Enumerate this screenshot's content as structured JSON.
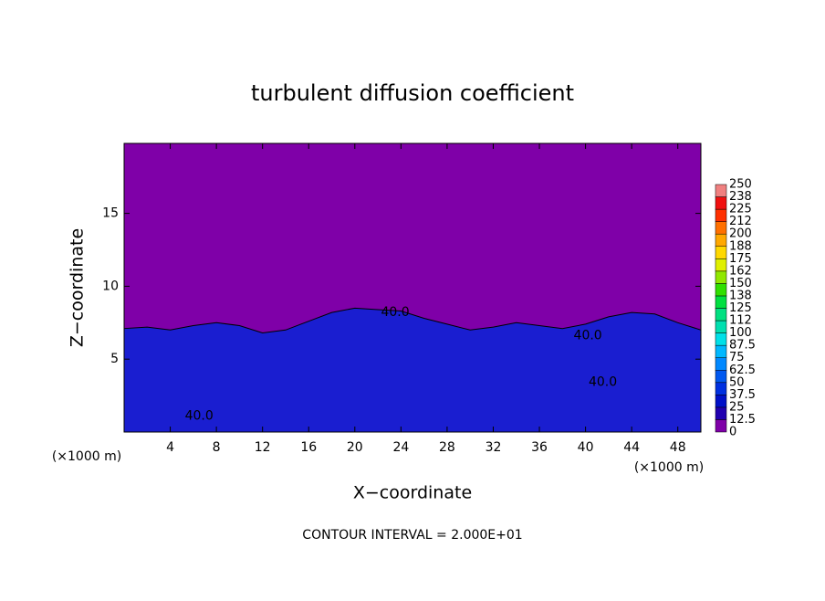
{
  "chart_data": {
    "type": "contour",
    "title": "turbulent diffusion coefficient",
    "xlabel": "X−coordinate",
    "ylabel": "Z−coordinate",
    "xunit": "(×1000 m)",
    "yunit": "(×1000 m)",
    "footer": "CONTOUR INTERVAL = 2.000E+01",
    "xlim": [
      0,
      50
    ],
    "ylim": [
      0,
      19.8
    ],
    "xticks": [
      4,
      8,
      12,
      16,
      20,
      24,
      28,
      32,
      36,
      40,
      44,
      48
    ],
    "yticks": [
      5,
      10,
      15
    ],
    "background": "#7f00a8",
    "x": [
      0,
      2,
      4,
      6,
      8,
      10,
      12,
      14,
      16,
      18,
      20,
      22,
      24,
      26,
      28,
      30,
      32,
      34,
      36,
      38,
      40,
      42,
      44,
      46,
      48,
      50
    ],
    "values": [
      7.1,
      7.2,
      7.0,
      7.3,
      7.5,
      7.3,
      6.8,
      7.0,
      7.6,
      8.2,
      8.5,
      8.4,
      8.3,
      7.8,
      7.4,
      7.0,
      7.2,
      7.5,
      7.3,
      7.1,
      7.4,
      7.9,
      8.2,
      8.1,
      7.5,
      7.0
    ],
    "color": "#1a1ed0",
    "annotations": [
      {
        "text": "40.0",
        "x": 23.5,
        "y": 8.2
      },
      {
        "text": "40.0",
        "x": 40.2,
        "y": 6.6
      },
      {
        "text": "40.0",
        "x": 41.5,
        "y": 3.4
      },
      {
        "text": "40.0",
        "x": 6.5,
        "y": 1.1
      }
    ],
    "colorbar_ticks": [
      0,
      12.5,
      25,
      37.5,
      50,
      62.5,
      75,
      87.5,
      100,
      {
        "value": 112.5,
        "label": "112"
      },
      125,
      {
        "value": 137.5,
        "label": "138"
      },
      150,
      {
        "value": 162.5,
        "label": "162"
      },
      175,
      {
        "value": 187.5,
        "label": "188"
      },
      200,
      {
        "value": 212.5,
        "label": "212"
      },
      225,
      {
        "value": 237.5,
        "label": "238"
      },
      250
    ],
    "colorbar_colors": [
      "#7f00a8",
      "#2000b0",
      "#0010c8",
      "#0030e0",
      "#0058f0",
      "#0088ff",
      "#00b8ff",
      "#00e0e8",
      "#00e0b0",
      "#00e080",
      "#00e040",
      "#30e000",
      "#90e800",
      "#e0f000",
      "#ffd800",
      "#ffa800",
      "#ff7000",
      "#ff3000",
      "#f01010",
      "#f08080"
    ]
  }
}
